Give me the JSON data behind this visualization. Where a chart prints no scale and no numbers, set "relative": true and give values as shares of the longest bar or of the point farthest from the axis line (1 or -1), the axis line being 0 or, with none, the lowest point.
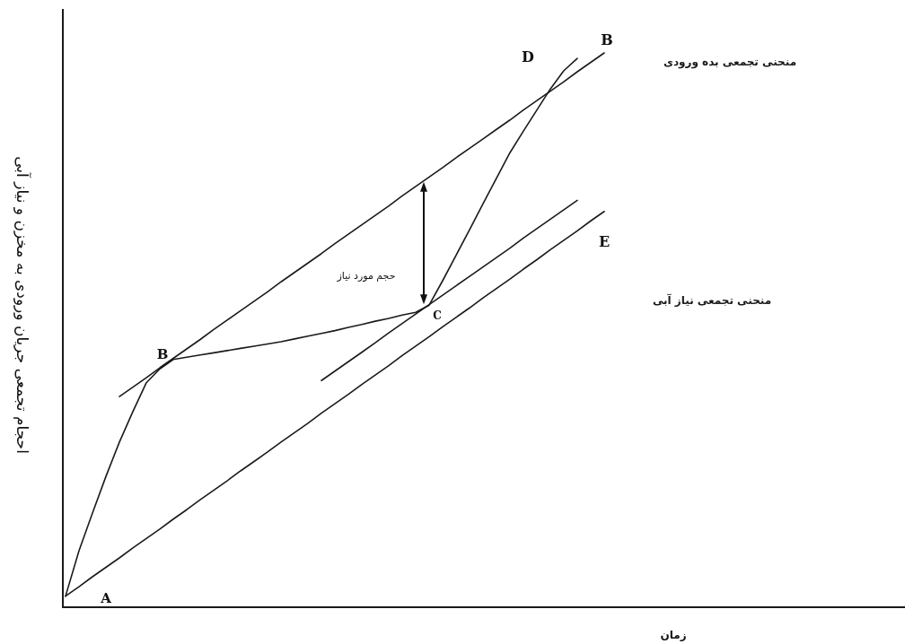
{
  "chart_data": {
    "type": "line",
    "relative": true,
    "xlabel": "زمان",
    "ylabel": "احجام تجمعی جریان ورودی به مخزن و نیاز آبی",
    "categories": [
      null,
      null,
      null,
      null,
      null,
      null,
      null,
      null,
      null,
      null,
      null,
      null,
      null,
      null,
      null,
      null,
      null,
      null,
      null,
      null,
      null,
      null,
      null,
      null,
      null,
      null,
      null,
      null,
      null,
      null,
      null,
      null,
      null,
      null,
      null,
      null,
      null,
      null,
      null,
      null,
      null,
      null,
      null,
      null,
      null,
      null,
      null,
      null,
      null,
      null,
      null,
      null,
      null,
      null,
      null,
      null,
      null,
      null,
      null,
      null,
      null,
      null,
      null
    ],
    "series": [
      {
        "name": "منحنی تجمعی بده ورودی",
        "color": "#1a1a1a",
        "values": [
          0.02,
          0.102,
          0.17,
          0.236,
          0.298,
          0.353,
          0.405,
          0.43,
          0.447,
          0.451,
          0.455,
          0.459,
          0.463,
          0.467,
          0.471,
          0.475,
          0.479,
          0.484,
          0.489,
          0.494,
          0.499,
          0.505,
          0.51,
          0.516,
          0.521,
          0.527,
          0.532,
          0.545,
          0.589,
          0.635,
          0.681,
          0.728,
          0.774,
          0.82,
          0.859,
          0.897,
          0.935,
          0.968,
          0.99,
          null,
          null,
          null,
          null,
          null,
          null,
          null,
          null,
          null,
          null,
          null,
          null,
          null,
          null,
          null,
          null,
          null,
          null,
          null,
          null,
          null,
          null,
          null,
          null
        ]
      },
      {
        "color": "#1a1a1a",
        "values": [
          null,
          null,
          null,
          null,
          0.38,
          0.397,
          0.414,
          0.432,
          0.449,
          0.466,
          0.483,
          0.501,
          0.518,
          0.535,
          0.552,
          0.569,
          0.587,
          0.604,
          0.621,
          0.638,
          0.656,
          0.673,
          0.69,
          0.707,
          0.724,
          0.742,
          0.759,
          0.776,
          0.793,
          0.811,
          0.828,
          0.845,
          0.862,
          0.879,
          0.897,
          0.914,
          0.931,
          0.948,
          0.966,
          0.983,
          1.0,
          null,
          null,
          null,
          null,
          null,
          null,
          null,
          null,
          null,
          null,
          null,
          null,
          null,
          null,
          null,
          null,
          null,
          null,
          null,
          null,
          null,
          null
        ]
      },
      {
        "color": "#1a1a1a",
        "values": [
          null,
          null,
          null,
          null,
          null,
          null,
          null,
          null,
          null,
          null,
          null,
          null,
          null,
          null,
          null,
          null,
          null,
          null,
          null,
          0.409,
          0.426,
          0.443,
          0.46,
          0.477,
          0.495,
          0.512,
          0.529,
          0.546,
          0.563,
          0.58,
          0.597,
          0.614,
          0.631,
          0.648,
          0.666,
          0.683,
          0.7,
          0.717,
          0.734,
          null,
          null,
          null,
          null,
          null,
          null,
          null,
          null,
          null,
          null,
          null,
          null,
          null,
          null,
          null,
          null,
          null,
          null,
          null,
          null,
          null,
          null,
          null,
          null
        ]
      },
      {
        "name": "منحنی تجمعی نیاز آبی",
        "color": "#1a1a1a",
        "values": [
          0.02,
          0.037,
          0.055,
          0.072,
          0.089,
          0.107,
          0.124,
          0.141,
          0.159,
          0.176,
          0.194,
          0.211,
          0.228,
          0.246,
          0.263,
          0.28,
          0.298,
          0.315,
          0.332,
          0.35,
          0.367,
          0.384,
          0.402,
          0.419,
          0.436,
          0.454,
          0.471,
          0.488,
          0.506,
          0.523,
          0.54,
          0.558,
          0.575,
          0.592,
          0.61,
          0.627,
          0.645,
          0.662,
          0.679,
          0.697,
          0.714,
          null,
          null,
          null,
          null,
          null,
          null,
          null,
          null,
          null,
          null,
          null,
          null,
          null,
          null,
          null,
          null,
          null,
          null,
          null,
          null,
          null,
          null
        ]
      }
    ],
    "annotations": [
      "A",
      {
        "text": "B",
        "y": 0.43
      },
      {
        "text": "C",
        "y": 0.547
      },
      "D",
      {
        "text": "B",
        "y": 1.0
      },
      {
        "text": "E",
        "y": 0.714
      },
      "حجم مورد نیاز"
    ]
  }
}
